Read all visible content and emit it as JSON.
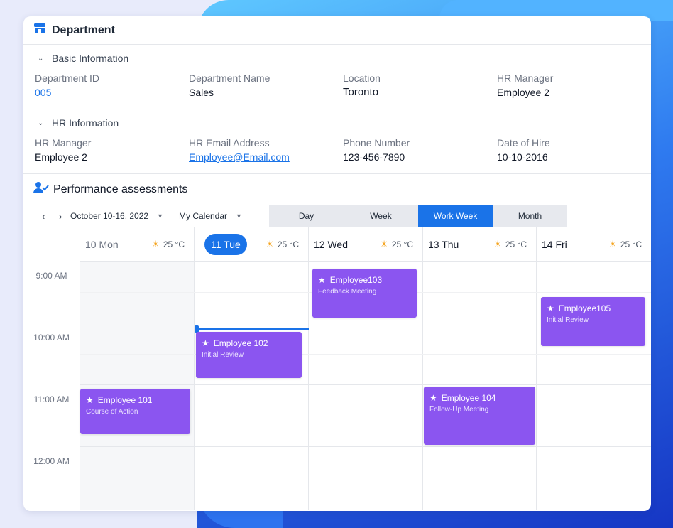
{
  "header": {
    "title": "Department"
  },
  "basic": {
    "section_label": "Basic Information",
    "fields": [
      {
        "label": "Department ID",
        "value": "005"
      },
      {
        "label": "Department Name",
        "value": "Sales"
      },
      {
        "label": "Location",
        "value": "Toronto"
      },
      {
        "label": "HR Manager",
        "value": "Employee 2"
      }
    ]
  },
  "hr": {
    "section_label": "HR Information",
    "fields": [
      {
        "label": "HR Manager",
        "value": "Employee 2"
      },
      {
        "label": "HR Email Address",
        "value": "Employee@Email.com"
      },
      {
        "label": "Phone Number",
        "value": "123-456-7890"
      },
      {
        "label": "Date of Hire",
        "value": "10-10-2016"
      }
    ]
  },
  "performance": {
    "title": "Performance assessments",
    "date_range": "October 10-16, 2022",
    "calendar_name": "My Calendar",
    "views": [
      "Day",
      "Week",
      "Work Week",
      "Month"
    ],
    "active_view": "Work Week",
    "days": [
      {
        "label": "10 Mon",
        "weather": "25 °C"
      },
      {
        "label": "11 Tue",
        "weather": "25 °C",
        "today": true
      },
      {
        "label": "12 Wed",
        "weather": "25 °C"
      },
      {
        "label": "13 Thu",
        "weather": "25 °C"
      },
      {
        "label": "14 Fri",
        "weather": "25 °C"
      }
    ],
    "times": [
      "9:00 AM",
      "10:00 AM",
      "11:00 AM",
      "12:00 AM"
    ],
    "events": [
      {
        "name": "Employee103",
        "subtitle": "Feedback Meeting"
      },
      {
        "name": "Employee105",
        "subtitle": "Initial Review"
      },
      {
        "name": "Employee 102",
        "subtitle": "Initial Review"
      },
      {
        "name": "Employee 101",
        "subtitle": "Course of Action"
      },
      {
        "name": "Employee 104",
        "subtitle": "Follow-Up Meeting"
      }
    ]
  },
  "colors": {
    "accent": "#1a73e8",
    "event": "#8b55f0"
  }
}
